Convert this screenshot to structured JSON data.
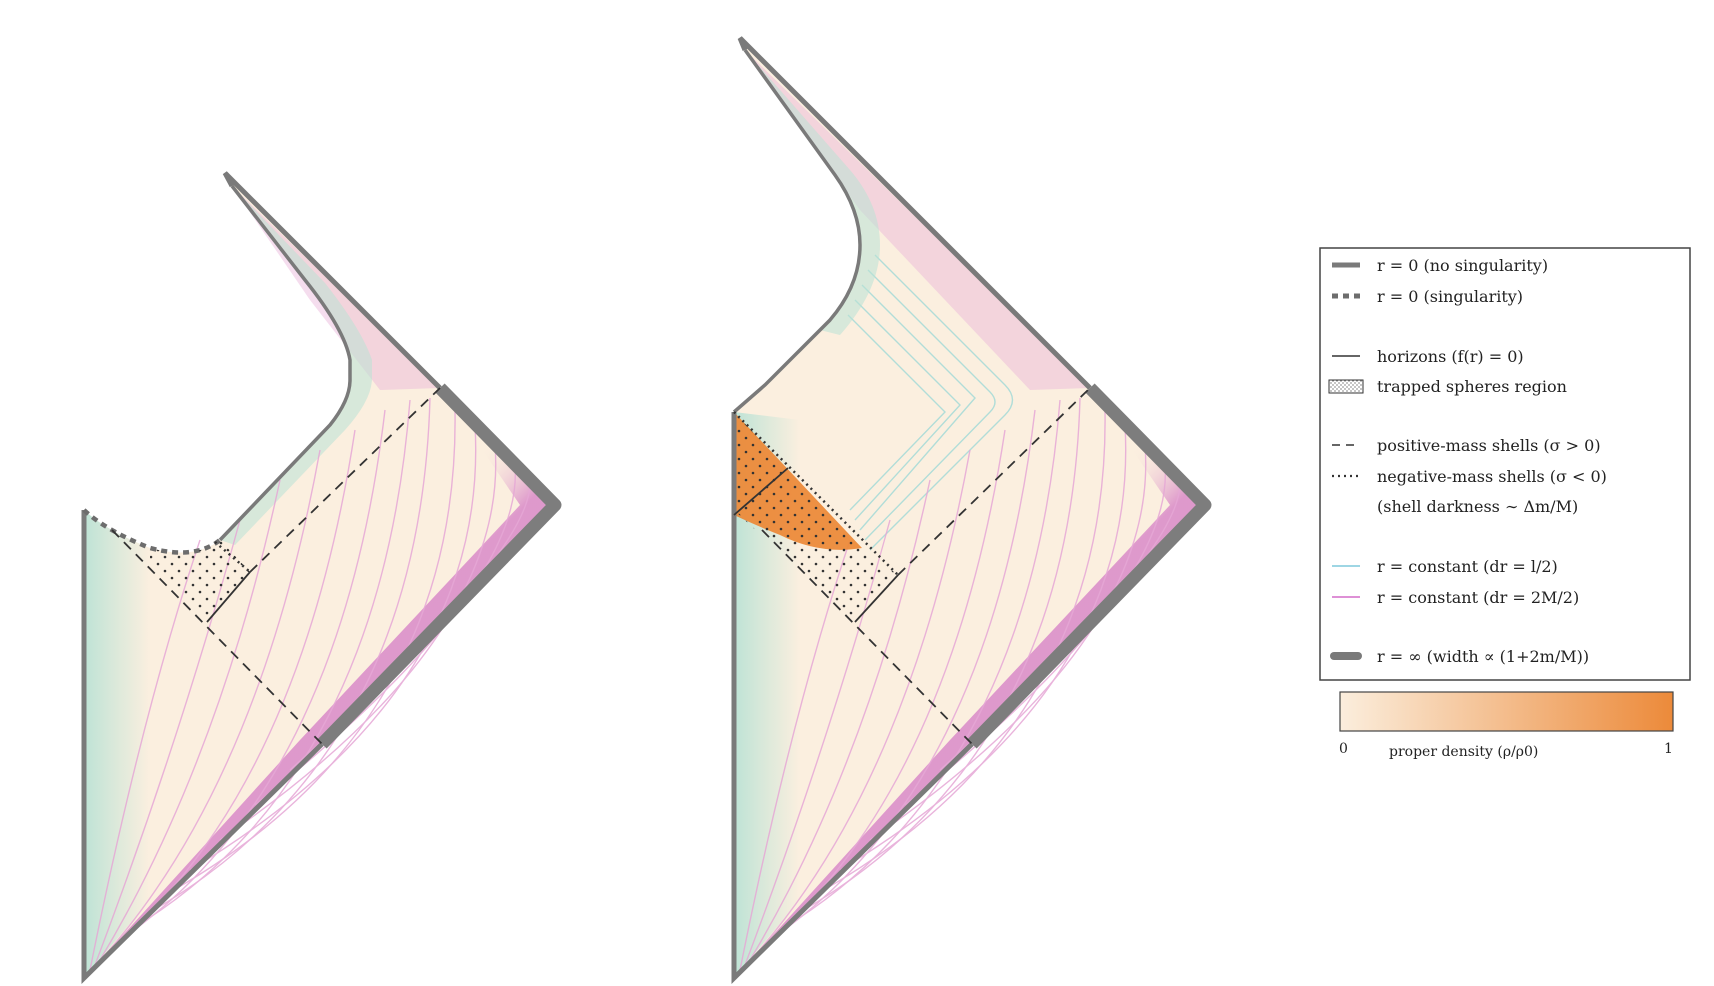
{
  "legend": {
    "items": [
      {
        "key": "no_singularity",
        "label": "r = 0 (no singularity)"
      },
      {
        "key": "singularity",
        "label": "r = 0 (singularity)"
      },
      {
        "key": "horizons",
        "label": "horizons (f(r) = 0)"
      },
      {
        "key": "trapped",
        "label": "trapped spheres region"
      },
      {
        "key": "positive_shells",
        "label": "positive-mass shells (σ > 0)"
      },
      {
        "key": "negative_shells",
        "label": "negative-mass shells (σ < 0)"
      },
      {
        "key": "shell_darkness",
        "label": "(shell darkness ∼ Δm/M)"
      },
      {
        "key": "r_const_cyan",
        "label": "r = constant  (dr = l/2)"
      },
      {
        "key": "r_const_pink",
        "label": "r = constant  (dr = 2M/2)"
      },
      {
        "key": "r_infinity",
        "label": "r = ∞  (width ∝ (1+2m/M))"
      }
    ]
  },
  "colorbar": {
    "label": "proper density (ρ/ρ0)",
    "min_label": "0",
    "max_label": "1",
    "color_low": "#fbeedd",
    "color_high": "#ec8a3a"
  },
  "colors": {
    "boundary": "#7a7a7a",
    "region_fill": "#fbefdf",
    "pink_line": "#e6a8d6",
    "cyan_line": "#a9dcd8",
    "edge_pink": "#d98ac8",
    "edge_cyan": "#b9e2d5",
    "shell_line": "#333333",
    "trapped_dots": "#333333",
    "dense_core": "#ec8a3a",
    "legend_border": "#444444",
    "legend_cyan": "#7fc9db",
    "legend_pink": "#d36bc8"
  }
}
